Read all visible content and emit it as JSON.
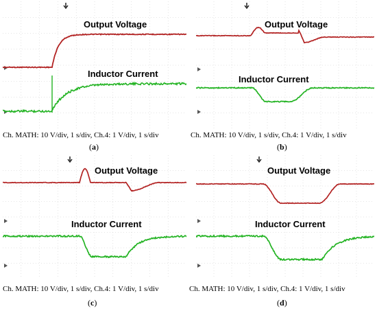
{
  "panels": [
    {
      "id": "a",
      "letter": "a",
      "output_label": "Output Voltage",
      "inductor_label": "Inductor Current",
      "caption": "Ch. MATH: 10 V/div, 1 s/div, Ch.4: 1 V/div, 1 s/div",
      "response": "startup"
    },
    {
      "id": "b",
      "letter": "b",
      "output_label": "Output Voltage",
      "inductor_label": "Inductor Current",
      "caption": "Ch. MATH: 10 V/div, 1 s/div, Ch.4: 1 V/div, 1 s/div",
      "response": "pulse-with-overshoot"
    },
    {
      "id": "c",
      "letter": "c",
      "output_label": "Output Voltage",
      "inductor_label": "Inductor Current",
      "caption": "Ch. MATH: 10 V/div, 1 s/div, Ch.4: 1 V/div, 1 s/div",
      "response": "pulse-with-overshoot"
    },
    {
      "id": "d",
      "letter": "d",
      "output_label": "Output Voltage",
      "inductor_label": "Inductor Current",
      "caption": "Ch. MATH: 10 V/div, 1 s/div, Ch.4: 1 V/div, 1 s/div",
      "response": "pulse-dip"
    }
  ],
  "colors": {
    "output": "#b22222",
    "inductor": "#22b322",
    "grid": "#c8c8c8"
  },
  "chart_data": [
    {
      "type": "line",
      "panel": "a",
      "series": [
        {
          "name": "Output Voltage"
        },
        {
          "name": "Inductor Current"
        }
      ]
    },
    {
      "type": "line",
      "panel": "b",
      "series": [
        {
          "name": "Output Voltage"
        },
        {
          "name": "Inductor Current"
        }
      ]
    },
    {
      "type": "line",
      "panel": "c",
      "series": [
        {
          "name": "Output Voltage"
        },
        {
          "name": "Inductor Current"
        }
      ]
    },
    {
      "type": "line",
      "panel": "d",
      "series": [
        {
          "name": "Output Voltage"
        },
        {
          "name": "Inductor Current"
        }
      ]
    }
  ]
}
